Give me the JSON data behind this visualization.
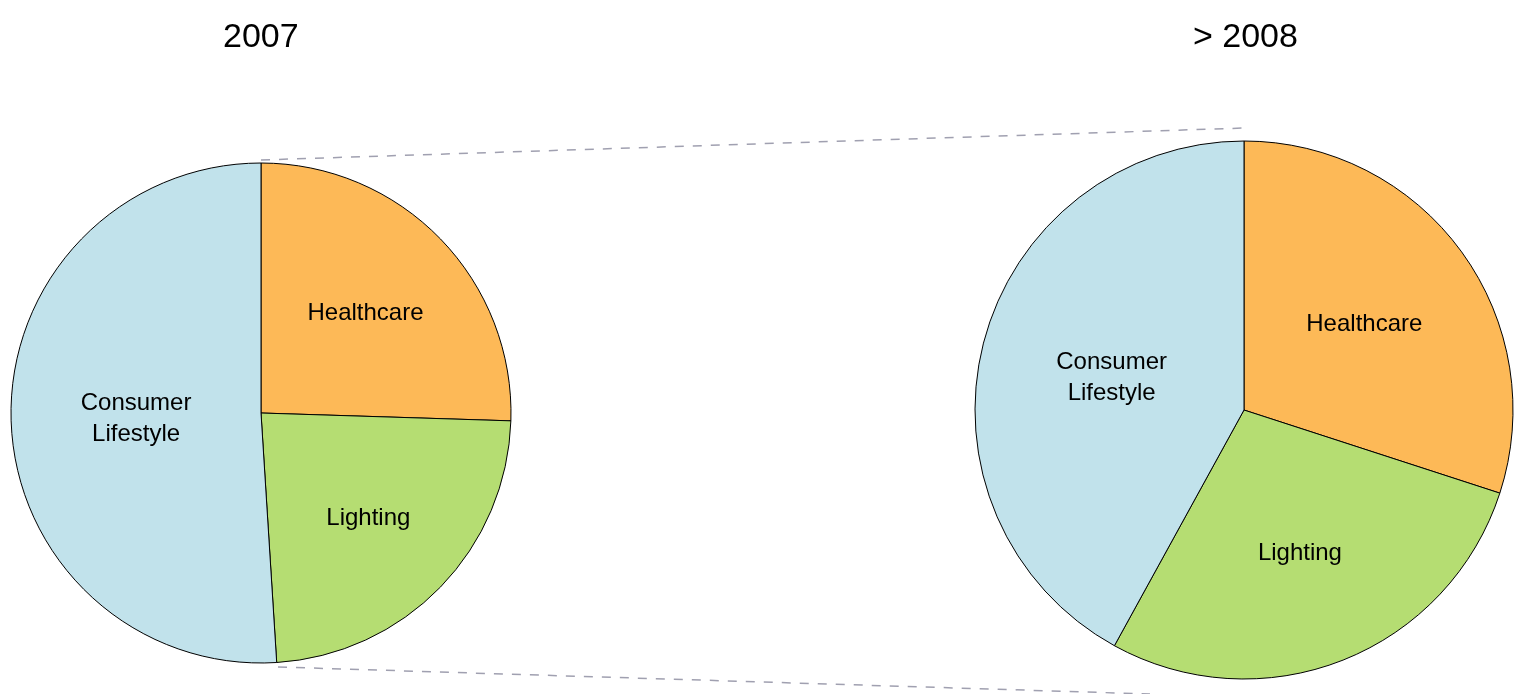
{
  "chart_data": [
    {
      "type": "pie",
      "title": "2007",
      "categories": [
        "Healthcare",
        "Lighting",
        "Consumer\nLifestyle"
      ],
      "values": [
        25.5,
        23.5,
        51
      ],
      "colors": [
        "#fdb957",
        "#b5dd72",
        "#c1e2eb"
      ],
      "legend": false
    },
    {
      "type": "pie",
      "title": "> 2008",
      "categories": [
        "Healthcare",
        "Lighting",
        "Consumer\nLifestyle"
      ],
      "values": [
        30,
        28,
        42
      ],
      "colors": [
        "#fdb957",
        "#b5dd72",
        "#c1e2eb"
      ],
      "legend": false
    }
  ]
}
